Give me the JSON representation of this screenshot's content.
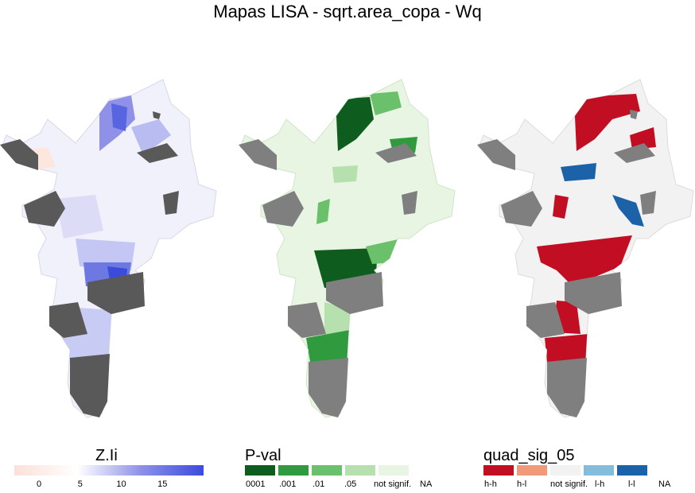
{
  "title": "Mapas LISA - sqrt.area_copa - Wq",
  "colors": {
    "na_gray": "#595959",
    "sig_gray": "#7f7f7f",
    "border": "#ffffff"
  },
  "chart_data": [
    {
      "type": "choropleth-map",
      "name": "Z.Ii",
      "legend_title": "Z.Ii",
      "scale": "continuous",
      "colors": [
        "#fbe0d8",
        "#ffffff",
        "#8f91e8",
        "#3b4bdc"
      ],
      "tick_labels": [
        "0",
        "5",
        "10",
        "15"
      ],
      "ticks": [
        0,
        5,
        10,
        15
      ],
      "range": [
        -3,
        20
      ]
    },
    {
      "type": "choropleth-map",
      "name": "P-val",
      "legend_title": "P-val",
      "scale": "categorical",
      "categories": [
        {
          "label": "0001",
          "color": "#0f5c1f"
        },
        {
          "label": ".001",
          "color": "#2f9a3e"
        },
        {
          "label": ".01",
          "color": "#6ac06b"
        },
        {
          "label": ".05",
          "color": "#b6e0ae"
        },
        {
          "label": "not signif.",
          "color": "#e8f5e2"
        },
        {
          "label": "NA",
          "color": "#ffffff"
        }
      ]
    },
    {
      "type": "choropleth-map",
      "name": "quad_sig_05",
      "legend_title": "quad_sig_05",
      "scale": "categorical",
      "categories": [
        {
          "label": "h-h",
          "color": "#c20e22"
        },
        {
          "label": "h-l",
          "color": "#f2997a"
        },
        {
          "label": "not signif.",
          "color": "#f2f2f2"
        },
        {
          "label": "l-h",
          "color": "#84bcdc"
        },
        {
          "label": "l-l",
          "color": "#1c62a8"
        },
        {
          "label": "NA",
          "color": "#ffffff"
        }
      ]
    }
  ]
}
